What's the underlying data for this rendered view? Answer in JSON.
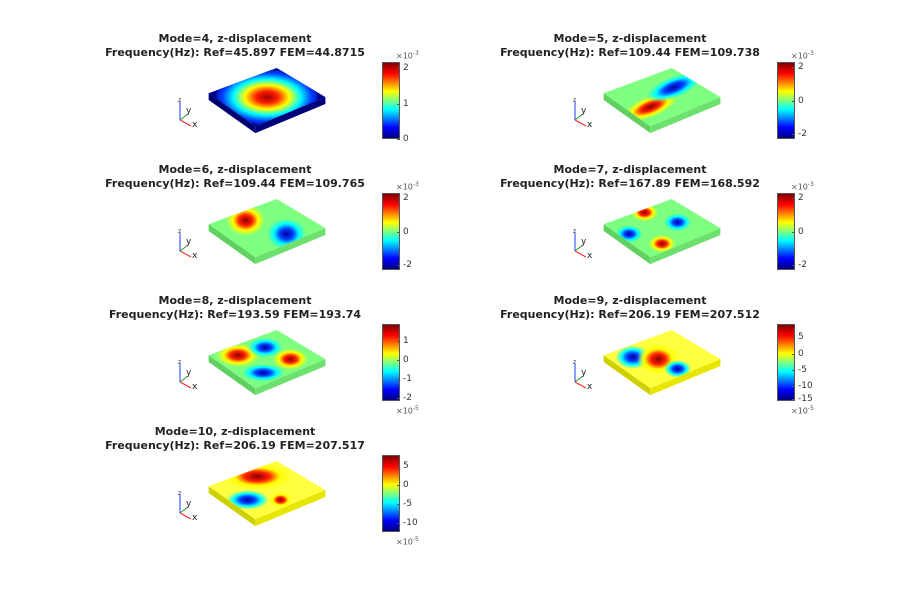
{
  "panels": [
    {
      "mode_title": "Mode=4, z-displacement",
      "freq_title": "Frequency(Hz): Ref=45.897 FEM=44.8715",
      "colorbar": {
        "exponent_base": "×10",
        "exponent_power": "-3",
        "exponent_position": "top",
        "ticks": [
          "2",
          "1",
          "0"
        ]
      }
    },
    {
      "mode_title": "Mode=5, z-displacement",
      "freq_title": "Frequency(Hz): Ref=109.44 FEM=109.738",
      "colorbar": {
        "exponent_base": "×10",
        "exponent_power": "-3",
        "exponent_position": "top",
        "ticks": [
          "2",
          "0",
          "-2"
        ]
      }
    },
    {
      "mode_title": "Mode=6, z-displacement",
      "freq_title": "Frequency(Hz): Ref=109.44 FEM=109.765",
      "colorbar": {
        "exponent_base": "×10",
        "exponent_power": "-3",
        "exponent_position": "top",
        "ticks": [
          "2",
          "0",
          "-2"
        ]
      }
    },
    {
      "mode_title": "Mode=7, z-displacement",
      "freq_title": "Frequency(Hz): Ref=167.89 FEM=168.592",
      "colorbar": {
        "exponent_base": "×10",
        "exponent_power": "-3",
        "exponent_position": "top",
        "ticks": [
          "2",
          "0",
          "-2"
        ]
      }
    },
    {
      "mode_title": "Mode=8, z-displacement",
      "freq_title": "Frequency(Hz): Ref=193.59 FEM=193.74",
      "colorbar": {
        "exponent_base": "×10",
        "exponent_power": "-5",
        "exponent_position": "bottom",
        "ticks": [
          "1",
          "0",
          "-1",
          "-2"
        ]
      }
    },
    {
      "mode_title": "Mode=9, z-displacement",
      "freq_title": "Frequency(Hz): Ref=206.19 FEM=207.512",
      "colorbar": {
        "exponent_base": "×10",
        "exponent_power": "-5",
        "exponent_position": "bottom",
        "ticks": [
          "5",
          "0",
          "-5",
          "-10",
          "-15"
        ]
      }
    },
    {
      "mode_title": "Mode=10, z-displacement",
      "freq_title": "Frequency(Hz): Ref=206.19 FEM=207.517",
      "colorbar": {
        "exponent_base": "×10",
        "exponent_power": "-5",
        "exponent_position": "bottom",
        "ticks": [
          "5",
          "0",
          "-5",
          "-10"
        ]
      }
    }
  ],
  "axis_labels": {
    "x": "x",
    "y": "y",
    "z": "z"
  }
}
